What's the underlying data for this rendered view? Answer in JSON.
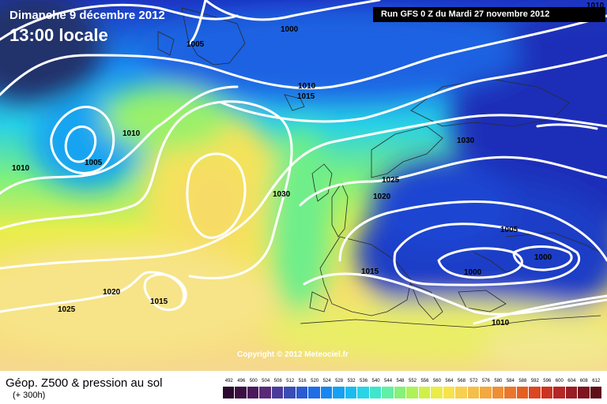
{
  "header": {
    "date": "Dimanche 9 décembre 2012",
    "time": "13:00 locale",
    "run": "Run GFS 0 Z du Mardi 27 novembre 2012"
  },
  "footer": {
    "copyright": "Copyright © 2012 Meteociel.fr",
    "parameter": "Géop. Z500 & pression au sol",
    "forecast_hour": "(+ 300h)"
  },
  "isobar_labels": [
    "1000",
    "1005",
    "1010",
    "1010",
    "1015",
    "1010",
    "1005",
    "1010",
    "1030",
    "1030",
    "1025",
    "1020",
    "1005",
    "1000",
    "1000",
    "1015",
    "1020",
    "1015",
    "1025",
    "1010"
  ],
  "geopotential_scale": {
    "values": [
      "492",
      "496",
      "500",
      "504",
      "508",
      "512",
      "516",
      "520",
      "524",
      "528",
      "532",
      "536",
      "540",
      "544",
      "548",
      "552",
      "556",
      "560",
      "564",
      "568",
      "572",
      "576",
      "580",
      "584",
      "588",
      "592",
      "596",
      "600",
      "604",
      "608",
      "612"
    ],
    "colors": [
      "#2a0b2e",
      "#3a1040",
      "#4b1a5a",
      "#5a2a78",
      "#4a3b9a",
      "#3a4cb5",
      "#2b5bd0",
      "#1f6ee6",
      "#1886f0",
      "#14a0f4",
      "#18bcf0",
      "#28d4e6",
      "#3ee6cc",
      "#5ff0a6",
      "#86f07a",
      "#acf258",
      "#cff04a",
      "#eaec48",
      "#f8e24a",
      "#f8d050",
      "#f5be4a",
      "#f3a840",
      "#ef8f34",
      "#eb762a",
      "#e55e22",
      "#dc4620",
      "#cc3322",
      "#b52626",
      "#9a1c24",
      "#7e1420",
      "#5e0e18"
    ]
  },
  "colors": {
    "polar_low": "#2b3ec9",
    "ridge": "#f7e66a",
    "subtropics": "#f6d77a",
    "isobar": "#ffffff"
  }
}
